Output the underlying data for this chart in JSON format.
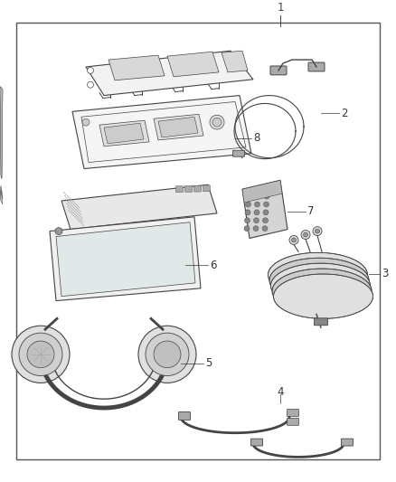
{
  "background_color": "#ffffff",
  "border_color": "#555555",
  "label_color": "#333333",
  "line_color": "#444444",
  "fig_width": 4.38,
  "fig_height": 5.33,
  "dpi": 100,
  "font_size": 8.5,
  "border_lw": 1.0
}
